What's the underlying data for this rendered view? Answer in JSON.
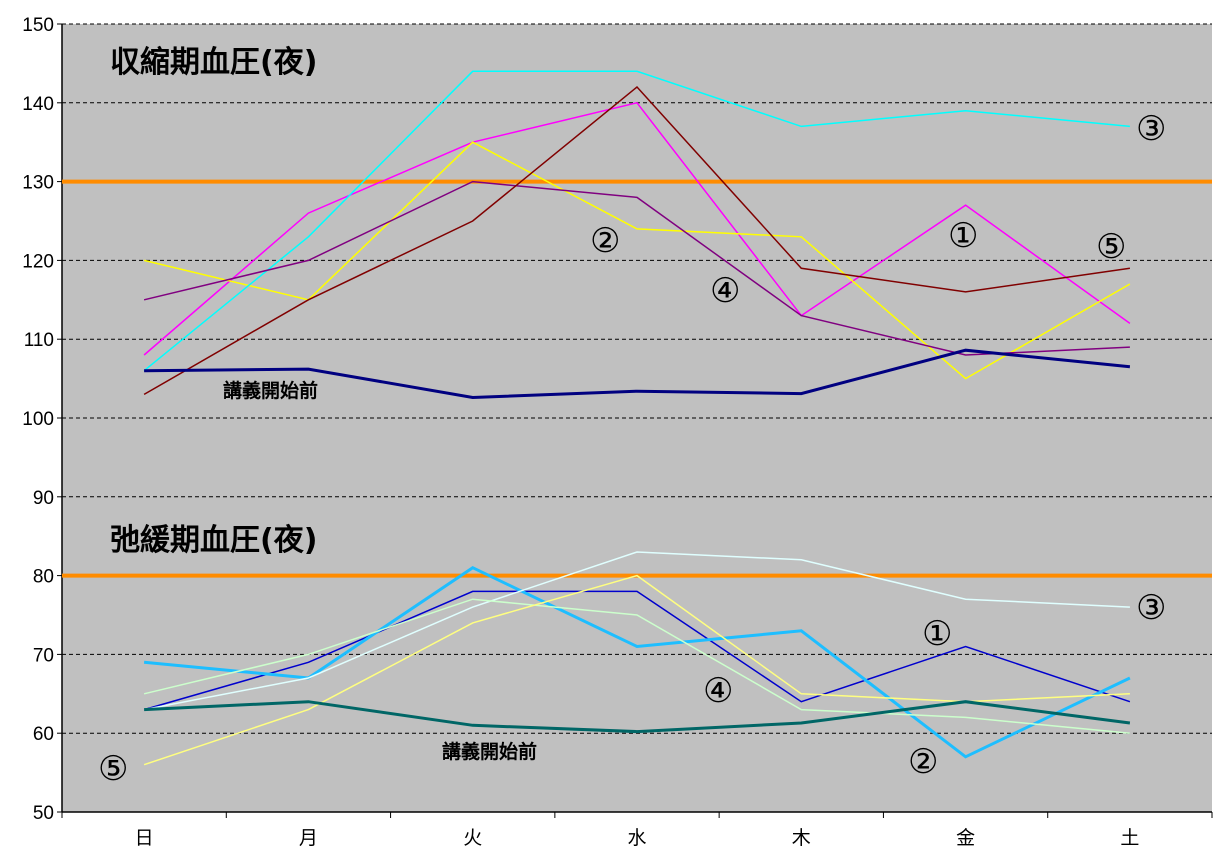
{
  "chart_data": {
    "type": "line",
    "categories": [
      "日",
      "月",
      "火",
      "水",
      "木",
      "金",
      "土"
    ],
    "ylim": [
      50,
      150
    ],
    "y_ticks": [
      50,
      60,
      70,
      80,
      90,
      100,
      110,
      120,
      130,
      140,
      150
    ],
    "grid": true,
    "plot_background": "#c0c0c0",
    "threshold_color": "#ff8c00",
    "thresholds": [
      130,
      80
    ],
    "groups": [
      {
        "title": "収縮期血圧(夜)",
        "series": [
          {
            "name": "①",
            "color": "#ff00ff",
            "width": 1.5,
            "values": [
              108,
              126,
              135,
              140,
              113,
              127,
              112
            ]
          },
          {
            "name": "②",
            "color": "#ffff00",
            "width": 1.5,
            "values": [
              120,
              115,
              135,
              124,
              123,
              105,
              117
            ]
          },
          {
            "name": "③",
            "color": "#00ffff",
            "width": 1.5,
            "values": [
              106,
              123,
              144,
              144,
              137,
              139,
              137
            ]
          },
          {
            "name": "④",
            "color": "#800080",
            "width": 1.5,
            "values": [
              115,
              120,
              130,
              128,
              113,
              108,
              109
            ]
          },
          {
            "name": "⑤",
            "color": "#800000",
            "width": 1.5,
            "values": [
              103,
              115,
              125,
              142,
              119,
              116,
              119
            ]
          },
          {
            "name": "講義開始前",
            "color": "#000080",
            "width": 3,
            "values": [
              106,
              106.2,
              102.6,
              103.4,
              103.1,
              108.6,
              106.5
            ]
          }
        ],
        "annotations": [
          {
            "text": "講義開始前"
          },
          {
            "text": "①"
          },
          {
            "text": "②"
          },
          {
            "text": "③"
          },
          {
            "text": "④"
          },
          {
            "text": "⑤"
          }
        ]
      },
      {
        "title": "弛緩期血圧(夜)",
        "series": [
          {
            "name": "①",
            "color": "#0000cd",
            "width": 1.5,
            "values": [
              63,
              69,
              78,
              78,
              64,
              71,
              64
            ]
          },
          {
            "name": "②",
            "color": "#1ebeff",
            "width": 3,
            "values": [
              69,
              67,
              81,
              71,
              73,
              57,
              67
            ]
          },
          {
            "name": "③",
            "color": "#e0ffff",
            "width": 1.5,
            "values": [
              63,
              67,
              76,
              83,
              82,
              77,
              76
            ]
          },
          {
            "name": "④",
            "color": "#ccffcc",
            "width": 1.5,
            "values": [
              65,
              70,
              77,
              75,
              63,
              62,
              60
            ]
          },
          {
            "name": "⑤",
            "color": "#ffff80",
            "width": 1.5,
            "values": [
              56,
              63,
              74,
              80,
              65,
              64,
              65
            ]
          },
          {
            "name": "講義開始前",
            "color": "#006666",
            "width": 3,
            "values": [
              63,
              64,
              61,
              60.2,
              61.3,
              64,
              61.3
            ]
          }
        ],
        "annotations": [
          {
            "text": "講義開始前"
          },
          {
            "text": "①"
          },
          {
            "text": "②"
          },
          {
            "text": "③"
          },
          {
            "text": "④"
          },
          {
            "text": "⑤"
          }
        ]
      }
    ]
  }
}
